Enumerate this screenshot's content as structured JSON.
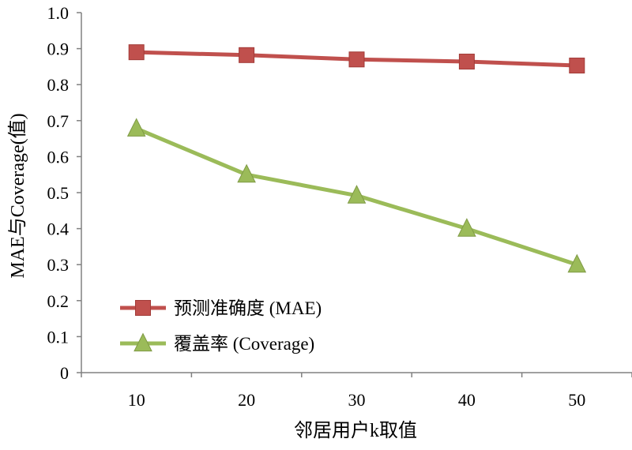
{
  "chart_data": {
    "type": "line",
    "xlabel": "邻居用户k取值",
    "ylabel": "MAE与Coverage(值)",
    "categories": [
      "10",
      "20",
      "30",
      "40",
      "50"
    ],
    "ylim": [
      0,
      1.0
    ],
    "yticks": [
      "0",
      "0.1",
      "0.2",
      "0.3",
      "0.4",
      "0.5",
      "0.6",
      "0.7",
      "0.8",
      "0.9",
      "1.0"
    ],
    "grid": false,
    "legend_position": "bottom-left",
    "series": [
      {
        "name": "预测准确度 (MAE)",
        "values": [
          0.89,
          0.882,
          0.87,
          0.864,
          0.853
        ],
        "color": "#c0504d",
        "marker": "square"
      },
      {
        "name": "覆盖率 (Coverage)",
        "values": [
          0.678,
          0.55,
          0.492,
          0.4,
          0.3
        ],
        "color": "#9bbb59",
        "marker": "triangle"
      }
    ]
  }
}
